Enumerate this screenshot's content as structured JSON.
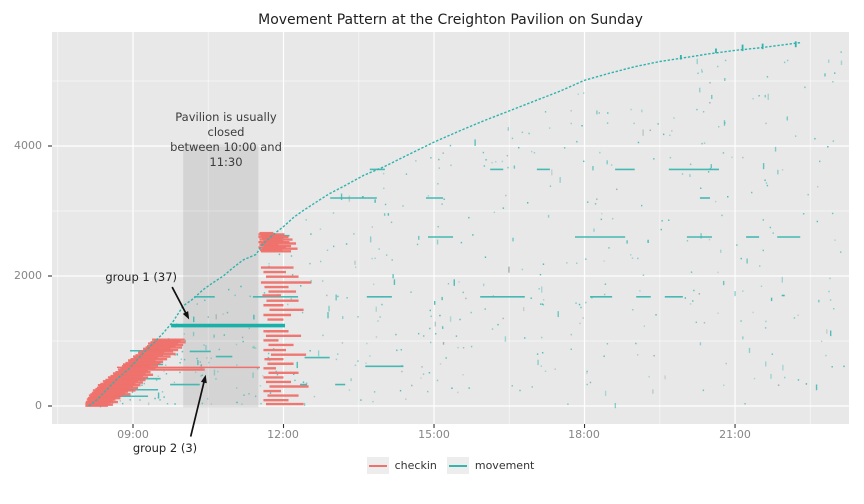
{
  "title": "Movement Pattern at the Creighton Pavilion on Sunday",
  "legend": {
    "items": [
      {
        "label": "checkin",
        "color": "#f0716c"
      },
      {
        "label": "movement",
        "color": "#35b5ae"
      }
    ]
  },
  "annotations": {
    "closed_band": {
      "line1": "Pavilion is usually closed",
      "line2": "between 10:00 and 11:30",
      "t1": 10.0,
      "t2": 11.5,
      "v1": -20,
      "v2": 4020
    },
    "group1": {
      "label": "group 1 (37)",
      "arrow": {
        "from": [
          9.78,
          1830
        ],
        "to": [
          10.12,
          1330
        ]
      }
    },
    "group2": {
      "label": "group 2 (3)",
      "arrow": {
        "from": [
          10.15,
          -470
        ],
        "to": [
          10.45,
          480
        ]
      }
    }
  },
  "chart_data": {
    "type": "scatter",
    "subtype": "event-segments-and-cumulative-curve",
    "title": "Movement Pattern at the Creighton Pavilion on Sunday",
    "xlabel": "",
    "ylabel": "",
    "x_axis": {
      "labels": [
        "09:00",
        "12:00",
        "15:00",
        "18:00",
        "21:00"
      ],
      "hours": [
        9,
        12,
        15,
        18,
        21
      ],
      "minor_hours": [
        7.5,
        10.5,
        13.5,
        16.5,
        19.5,
        22.5
      ],
      "range_hours": [
        7.39,
        23.27
      ]
    },
    "y_axis": {
      "labels": [
        "0",
        "2000",
        "4000"
      ],
      "values": [
        0,
        2000,
        4000
      ],
      "minor_values": [
        1000,
        3000,
        5000
      ],
      "range": [
        -280,
        5750
      ]
    },
    "colors": {
      "panel_bg": "#e8e8e8",
      "band": "rgba(90,90,90,0.14)",
      "grid_major": "#ffffff",
      "grid_minor": "rgba(255,255,255,0.55)",
      "checkin": "#f0716c",
      "movement": "#35b5ae",
      "movement_dark": "#18b0a8",
      "curve": "#2fb3ac",
      "arrow": "#111111",
      "tick": "#333333"
    },
    "cumulative_curve": [
      [
        8.12,
        0
      ],
      [
        8.3,
        110
      ],
      [
        8.5,
        270
      ],
      [
        8.7,
        430
      ],
      [
        8.9,
        560
      ],
      [
        9.0,
        640
      ],
      [
        9.2,
        810
      ],
      [
        9.4,
        960
      ],
      [
        9.6,
        1120
      ],
      [
        9.8,
        1300
      ],
      [
        10.0,
        1540
      ],
      [
        10.2,
        1650
      ],
      [
        10.4,
        1790
      ],
      [
        10.6,
        1900
      ],
      [
        10.8,
        2000
      ],
      [
        11.0,
        2130
      ],
      [
        11.2,
        2250
      ],
      [
        11.45,
        2330
      ],
      [
        11.6,
        2500
      ],
      [
        11.8,
        2640
      ],
      [
        12.0,
        2760
      ],
      [
        12.2,
        2900
      ],
      [
        12.4,
        3010
      ],
      [
        12.6,
        3110
      ],
      [
        12.9,
        3260
      ],
      [
        13.2,
        3380
      ],
      [
        13.6,
        3550
      ],
      [
        14.0,
        3680
      ],
      [
        14.5,
        3870
      ],
      [
        15.0,
        4060
      ],
      [
        15.5,
        4230
      ],
      [
        16.0,
        4390
      ],
      [
        16.5,
        4540
      ],
      [
        17.0,
        4690
      ],
      [
        17.5,
        4840
      ],
      [
        18.0,
        5010
      ],
      [
        18.5,
        5120
      ],
      [
        19.0,
        5220
      ],
      [
        19.5,
        5300
      ],
      [
        20.0,
        5360
      ],
      [
        20.5,
        5420
      ],
      [
        21.0,
        5470
      ],
      [
        21.5,
        5510
      ],
      [
        22.0,
        5560
      ],
      [
        22.3,
        5590
      ]
    ],
    "curve_dashes": [
      [
        19.92,
        5330,
        5400
      ],
      [
        20.62,
        5430,
        5500
      ],
      [
        21.15,
        5460,
        5560
      ],
      [
        21.55,
        5490,
        5575
      ],
      [
        22.21,
        5520,
        5610
      ]
    ],
    "group1_line": {
      "t1": 9.76,
      "t2": 12.03,
      "v": 1237,
      "size": 37
    },
    "group2_line": {
      "t1": 8.68,
      "t2": 11.53,
      "v": 595,
      "size": 3
    },
    "movement_segments": [
      [
        13.72,
        14.02,
        3640
      ],
      [
        16.12,
        16.38,
        3640
      ],
      [
        17.05,
        17.31,
        3640
      ],
      [
        18.61,
        19.0,
        3640
      ],
      [
        19.68,
        20.68,
        3640
      ],
      [
        12.93,
        13.86,
        3200
      ],
      [
        14.84,
        15.18,
        3200
      ],
      [
        20.3,
        20.5,
        3200
      ],
      [
        14.88,
        15.38,
        2600
      ],
      [
        17.81,
        18.81,
        2600
      ],
      [
        20.04,
        20.54,
        2600
      ],
      [
        21.22,
        21.48,
        2600
      ],
      [
        21.84,
        22.3,
        2600
      ],
      [
        11.55,
        12.12,
        2620
      ],
      [
        11.6,
        12.0,
        2585
      ],
      [
        10.22,
        10.63,
        1680
      ],
      [
        11.39,
        12.29,
        1680
      ],
      [
        13.66,
        14.16,
        1680
      ],
      [
        15.92,
        16.81,
        1680
      ],
      [
        18.11,
        18.55,
        1680
      ],
      [
        19.03,
        19.32,
        1680
      ],
      [
        19.6,
        19.96,
        1680
      ],
      [
        21.93,
        21.99,
        1700
      ],
      [
        10.13,
        10.55,
        840
      ],
      [
        10.65,
        10.98,
        760
      ],
      [
        12.42,
        12.92,
        745
      ],
      [
        13.63,
        14.39,
        610
      ],
      [
        9.74,
        10.33,
        330
      ],
      [
        12.33,
        12.47,
        330
      ],
      [
        13.03,
        13.23,
        330
      ],
      [
        8.94,
        9.78,
        850
      ],
      [
        8.85,
        9.6,
        640
      ],
      [
        8.8,
        9.55,
        420
      ],
      [
        8.72,
        9.5,
        250
      ],
      [
        8.6,
        9.3,
        150
      ]
    ],
    "checkin_segments": [
      [
        9.38,
        10.03,
        1020
      ],
      [
        9.42,
        9.95,
        1000
      ],
      [
        9.35,
        10.05,
        980
      ],
      [
        9.3,
        9.9,
        960
      ],
      [
        9.33,
        10.0,
        940
      ],
      [
        9.28,
        9.85,
        920
      ],
      [
        9.25,
        9.98,
        900
      ],
      [
        9.2,
        9.75,
        880
      ],
      [
        9.22,
        9.9,
        860
      ],
      [
        9.15,
        9.8,
        840
      ],
      [
        9.1,
        9.62,
        820
      ],
      [
        9.12,
        9.85,
        800
      ],
      [
        9.05,
        9.6,
        780
      ],
      [
        9.0,
        9.75,
        760
      ],
      [
        9.02,
        9.5,
        740
      ],
      [
        8.95,
        9.68,
        720
      ],
      [
        8.9,
        9.45,
        700
      ],
      [
        8.92,
        9.6,
        680
      ],
      [
        8.85,
        9.55,
        660
      ],
      [
        8.8,
        9.4,
        640
      ],
      [
        8.82,
        9.5,
        620
      ],
      [
        8.78,
        9.35,
        612
      ],
      [
        8.75,
        9.45,
        580
      ],
      [
        8.7,
        10.43,
        560
      ],
      [
        8.72,
        9.3,
        540
      ],
      [
        8.65,
        9.35,
        520
      ],
      [
        8.6,
        9.25,
        500
      ],
      [
        8.62,
        9.4,
        480
      ],
      [
        8.55,
        9.2,
        460
      ],
      [
        8.5,
        9.3,
        440
      ],
      [
        8.52,
        9.15,
        420
      ],
      [
        8.45,
        9.25,
        400
      ],
      [
        8.4,
        9.1,
        380
      ],
      [
        8.42,
        9.2,
        360
      ],
      [
        8.35,
        9.05,
        340
      ],
      [
        8.3,
        9.15,
        320
      ],
      [
        8.32,
        9.0,
        300
      ],
      [
        8.28,
        9.1,
        280
      ],
      [
        8.25,
        8.95,
        260
      ],
      [
        8.2,
        9.05,
        240
      ],
      [
        8.22,
        8.9,
        220
      ],
      [
        8.18,
        8.85,
        200
      ],
      [
        8.15,
        8.95,
        180
      ],
      [
        8.12,
        8.8,
        160
      ],
      [
        8.14,
        8.7,
        140
      ],
      [
        8.1,
        8.75,
        120
      ],
      [
        8.08,
        8.65,
        100
      ],
      [
        8.1,
        8.6,
        80
      ],
      [
        8.06,
        8.7,
        60
      ],
      [
        8.05,
        8.55,
        40
      ],
      [
        8.08,
        8.6,
        20
      ],
      [
        8.05,
        8.5,
        5
      ],
      [
        11.52,
        11.8,
        2660
      ],
      [
        11.5,
        12.02,
        2640
      ],
      [
        11.55,
        11.92,
        2620
      ],
      [
        11.5,
        12.1,
        2600
      ],
      [
        11.57,
        11.95,
        2580
      ],
      [
        11.52,
        12.18,
        2560
      ],
      [
        11.6,
        12.0,
        2540
      ],
      [
        11.5,
        12.12,
        2520
      ],
      [
        11.55,
        12.25,
        2500
      ],
      [
        11.52,
        11.9,
        2480
      ],
      [
        11.6,
        12.15,
        2460
      ],
      [
        11.5,
        12.05,
        2440
      ],
      [
        11.57,
        12.28,
        2420
      ],
      [
        11.53,
        11.98,
        2400
      ],
      [
        11.55,
        12.15,
        2380
      ],
      [
        11.55,
        12.2,
        2130
      ],
      [
        11.6,
        12.05,
        2060
      ],
      [
        11.65,
        12.3,
        1990
      ],
      [
        11.55,
        12.55,
        1900
      ],
      [
        11.62,
        12.1,
        1830
      ],
      [
        11.7,
        12.25,
        1760
      ],
      [
        11.58,
        11.95,
        1700
      ],
      [
        11.66,
        12.3,
        1620
      ],
      [
        11.6,
        12.0,
        1550
      ],
      [
        11.72,
        12.4,
        1480
      ],
      [
        11.6,
        12.15,
        1400
      ],
      [
        11.68,
        12.0,
        1330
      ],
      [
        11.6,
        12.1,
        1150
      ],
      [
        11.65,
        12.35,
        1080
      ],
      [
        11.6,
        11.9,
        1010
      ],
      [
        11.7,
        12.2,
        940
      ],
      [
        11.6,
        12.05,
        860
      ],
      [
        11.75,
        12.45,
        790
      ],
      [
        11.62,
        12.0,
        720
      ],
      [
        11.68,
        12.2,
        650
      ],
      [
        11.6,
        11.85,
        580
      ],
      [
        11.7,
        12.3,
        510
      ],
      [
        11.6,
        12.0,
        440
      ],
      [
        11.65,
        12.15,
        370
      ],
      [
        11.72,
        12.5,
        300
      ],
      [
        11.6,
        11.95,
        230
      ],
      [
        11.68,
        12.3,
        160
      ],
      [
        11.6,
        12.1,
        90
      ],
      [
        11.65,
        12.4,
        30
      ]
    ],
    "scatter": {
      "seed": 987654321,
      "count": 560,
      "t_min": 8.3,
      "t_max": 23.2
    }
  }
}
